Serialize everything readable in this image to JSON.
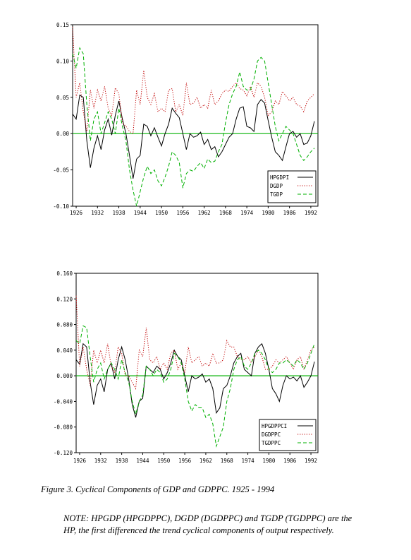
{
  "caption": "Figure 3. Cyclical Components of GDP and GDPPC. 1925 - 1994",
  "note": "NOTE: HPGDP (HPGDPPC), DGDP (DGDPPC) and TGDP (TGDPPC) are the HP, the first differenced the trend cyclical components of output respectively.",
  "colors": {
    "hp": "#000000",
    "d": "#c00000",
    "t": "#00b000",
    "zero": "#00b000"
  },
  "chart_data": [
    {
      "type": "line",
      "title": "",
      "xlabel": "",
      "ylabel": "",
      "xlim": [
        1925,
        1994
      ],
      "ylim": [
        -0.1,
        0.15
      ],
      "yticks": [
        "0.15",
        "0.10",
        "0.05",
        "0.00",
        "-0.05",
        "-0.10"
      ],
      "ytick_values": [
        0.15,
        0.1,
        0.05,
        0.0,
        -0.05,
        -0.1
      ],
      "xticks": [
        "1926",
        "1932",
        "1938",
        "1944",
        "1950",
        "1956",
        "1962",
        "1968",
        "1974",
        "1980",
        "1986",
        "1992"
      ],
      "xtick_values": [
        1926,
        1932,
        1938,
        1944,
        1950,
        1956,
        1962,
        1968,
        1974,
        1980,
        1986,
        1992
      ],
      "zero_line": true,
      "legend_position": "bottom-right",
      "x_start": 1925,
      "series": [
        {
          "name": "HPGDPI",
          "style": "solid",
          "color": "#000000",
          "values": [
            0.027,
            0.02,
            0.053,
            0.05,
            -0.01,
            -0.047,
            -0.02,
            -0.003,
            -0.022,
            0.005,
            0.02,
            -0.002,
            0.025,
            0.045,
            0.02,
            0.0,
            -0.03,
            -0.062,
            -0.035,
            -0.03,
            0.013,
            0.01,
            -0.003,
            0.008,
            -0.005,
            -0.017,
            0.0,
            0.013,
            0.035,
            0.028,
            0.022,
            0.0,
            -0.022,
            0.0,
            -0.005,
            -0.003,
            0.002,
            -0.015,
            -0.008,
            -0.022,
            -0.018,
            -0.032,
            -0.025,
            -0.015,
            -0.005,
            0.0,
            0.02,
            0.035,
            0.037,
            0.01,
            0.008,
            0.003,
            0.04,
            0.047,
            0.042,
            0.018,
            -0.005,
            -0.025,
            -0.03,
            -0.037,
            -0.018,
            0.0,
            0.003,
            -0.005,
            0.0,
            -0.015,
            -0.013,
            -0.003,
            0.017
          ]
        },
        {
          "name": "DGDP",
          "style": "dotted",
          "color": "#c00000",
          "values": [
            0.147,
            0.05,
            0.07,
            0.03,
            0.003,
            0.06,
            0.035,
            0.06,
            0.045,
            0.065,
            0.035,
            0.025,
            0.063,
            0.055,
            0.015,
            0.01,
            0.003,
            0.0,
            0.06,
            0.04,
            0.087,
            0.05,
            0.04,
            0.055,
            0.03,
            0.035,
            0.03,
            0.06,
            0.062,
            0.03,
            0.04,
            0.025,
            0.07,
            0.04,
            0.042,
            0.05,
            0.035,
            0.04,
            0.035,
            0.06,
            0.04,
            0.045,
            0.055,
            0.06,
            0.058,
            0.065,
            0.07,
            0.062,
            0.06,
            0.052,
            0.065,
            0.05,
            0.07,
            0.065,
            0.05,
            0.025,
            0.03,
            0.045,
            0.04,
            0.058,
            0.052,
            0.045,
            0.05,
            0.04,
            0.038,
            0.03,
            0.045,
            0.05,
            0.055
          ]
        },
        {
          "name": "TGDP",
          "style": "dashed",
          "color": "#00b000",
          "values": [
            0.11,
            0.09,
            0.118,
            0.11,
            0.04,
            -0.01,
            0.02,
            0.03,
            0.0,
            0.015,
            0.03,
            0.02,
            0.0,
            0.035,
            0.01,
            -0.01,
            -0.05,
            -0.078,
            -0.1,
            -0.08,
            -0.06,
            -0.045,
            -0.055,
            -0.05,
            -0.065,
            -0.072,
            -0.06,
            -0.045,
            -0.025,
            -0.03,
            -0.04,
            -0.075,
            -0.055,
            -0.05,
            -0.052,
            -0.045,
            -0.04,
            -0.048,
            -0.035,
            -0.04,
            -0.038,
            -0.025,
            -0.015,
            0.015,
            0.04,
            0.055,
            0.065,
            0.085,
            0.065,
            0.06,
            0.06,
            0.075,
            0.1,
            0.105,
            0.1,
            0.07,
            0.04,
            0.01,
            -0.01,
            0.0,
            0.01,
            0.005,
            0.0,
            -0.015,
            -0.03,
            -0.037,
            -0.032,
            -0.025,
            -0.02
          ]
        }
      ]
    },
    {
      "type": "line",
      "title": "",
      "xlabel": "",
      "ylabel": "",
      "xlim": [
        1925,
        1994
      ],
      "ylim": [
        -0.12,
        0.16
      ],
      "yticks": [
        "0.160",
        "0.120",
        "0.080",
        "0.040",
        "0.000",
        "-0.040",
        "-0.080",
        "-0.120"
      ],
      "ytick_values": [
        0.16,
        0.12,
        0.08,
        0.04,
        0.0,
        -0.04,
        -0.08,
        -0.12
      ],
      "xticks": [
        "1926",
        "1932",
        "1938",
        "1944",
        "1950",
        "1956",
        "1962",
        "1968",
        "1974",
        "1980",
        "1986",
        "1992"
      ],
      "xtick_values": [
        1926,
        1932,
        1938,
        1944,
        1950,
        1956,
        1962,
        1968,
        1974,
        1980,
        1986,
        1992
      ],
      "zero_line": true,
      "legend_position": "bottom-right",
      "x_start": 1925,
      "series": [
        {
          "name": "HPGDPPCI",
          "style": "solid",
          "color": "#000000",
          "values": [
            0.025,
            0.018,
            0.05,
            0.045,
            -0.01,
            -0.045,
            -0.015,
            -0.005,
            -0.025,
            0.01,
            0.02,
            -0.005,
            0.025,
            0.045,
            0.025,
            -0.005,
            -0.045,
            -0.065,
            -0.04,
            -0.035,
            0.015,
            0.01,
            0.005,
            0.015,
            0.01,
            -0.005,
            0.005,
            0.02,
            0.04,
            0.03,
            0.025,
            0.0,
            -0.025,
            0.0,
            -0.005,
            -0.002,
            0.003,
            -0.01,
            -0.005,
            -0.02,
            -0.058,
            -0.05,
            -0.02,
            -0.015,
            0.0,
            0.02,
            0.03,
            0.035,
            0.01,
            0.005,
            0.0,
            0.035,
            0.045,
            0.05,
            0.035,
            0.01,
            -0.02,
            -0.028,
            -0.04,
            -0.015,
            0.0,
            -0.005,
            -0.002,
            -0.008,
            0.0,
            -0.018,
            -0.01,
            0.0,
            0.022
          ]
        },
        {
          "name": "DGDPPC",
          "style": "dotted",
          "color": "#c00000",
          "values": [
            0.125,
            0.015,
            0.045,
            0.01,
            -0.015,
            0.04,
            0.02,
            0.04,
            0.02,
            0.05,
            0.015,
            0.005,
            0.045,
            0.035,
            0.0,
            0.0,
            -0.01,
            -0.02,
            0.04,
            0.03,
            0.075,
            0.025,
            0.02,
            0.03,
            0.01,
            0.02,
            0.01,
            0.035,
            0.04,
            0.01,
            0.02,
            0.005,
            0.045,
            0.02,
            0.025,
            0.03,
            0.015,
            0.02,
            0.015,
            0.035,
            0.02,
            0.02,
            0.025,
            0.055,
            0.045,
            0.045,
            0.03,
            0.025,
            0.025,
            0.03,
            0.02,
            0.03,
            0.04,
            0.03,
            0.01,
            0.01,
            0.015,
            0.025,
            0.02,
            0.025,
            0.03,
            0.02,
            0.01,
            0.025,
            0.03,
            0.01,
            0.025,
            0.04,
            0.045
          ]
        },
        {
          "name": "TGDPPC",
          "style": "dashed",
          "color": "#00b000",
          "values": [
            0.055,
            0.05,
            0.078,
            0.075,
            0.03,
            -0.01,
            0.01,
            0.02,
            -0.005,
            0.01,
            0.02,
            0.01,
            -0.005,
            0.025,
            0.005,
            -0.01,
            -0.04,
            -0.06,
            -0.04,
            -0.03,
            0.015,
            0.01,
            0.0,
            0.01,
            0.005,
            -0.01,
            -0.005,
            0.01,
            0.035,
            0.03,
            0.02,
            -0.005,
            -0.04,
            -0.055,
            -0.045,
            -0.05,
            -0.05,
            -0.065,
            -0.06,
            -0.075,
            -0.11,
            -0.095,
            -0.08,
            -0.04,
            -0.02,
            0.01,
            0.025,
            0.03,
            0.015,
            0.01,
            0.02,
            0.035,
            0.04,
            0.035,
            0.025,
            0.01,
            0.005,
            0.01,
            0.02,
            0.02,
            0.025,
            0.02,
            0.015,
            0.025,
            0.02,
            0.01,
            0.02,
            0.035,
            0.05
          ]
        }
      ]
    }
  ]
}
